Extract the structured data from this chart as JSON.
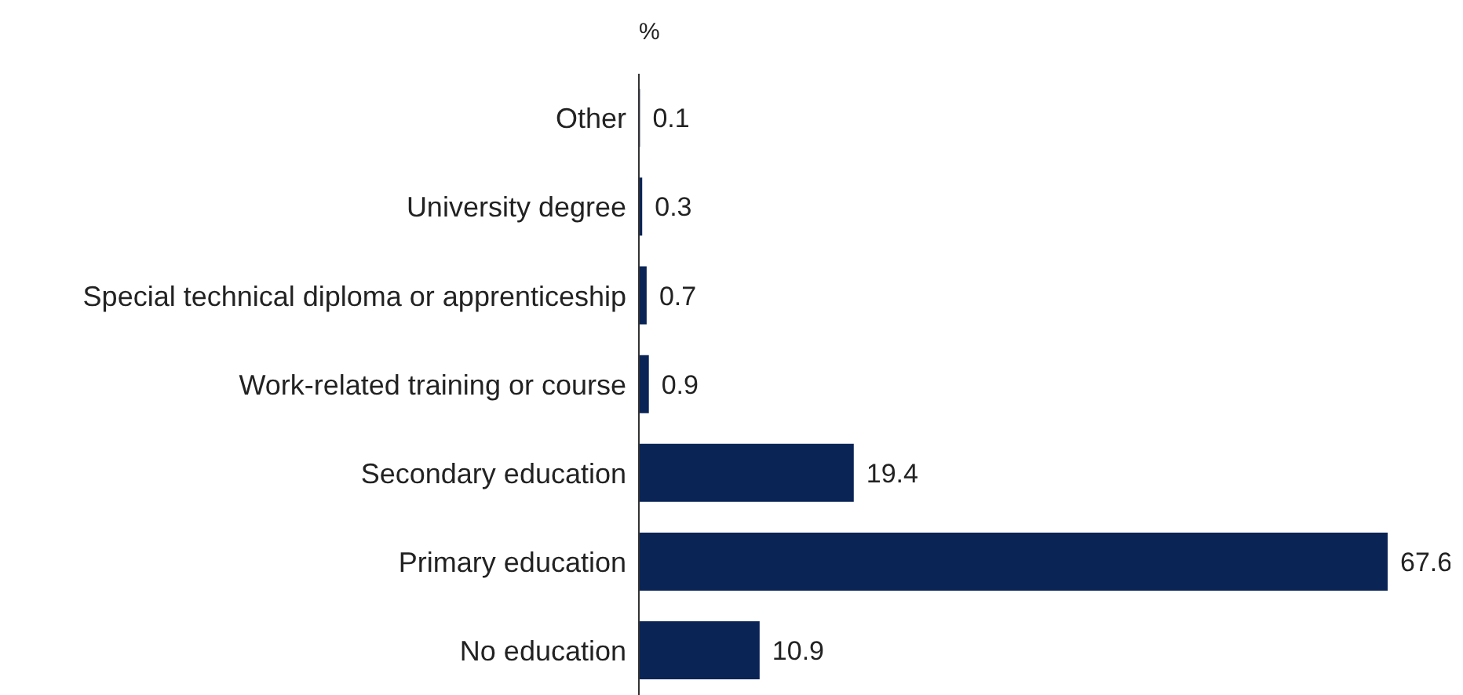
{
  "chart_data": {
    "type": "bar",
    "orientation": "horizontal",
    "xlabel": "%",
    "categories": [
      "Other",
      "University degree",
      "Special technical diploma or apprenticeship",
      "Work-related training or course",
      "Secondary education",
      "Primary education",
      "No education"
    ],
    "values": [
      0.1,
      0.3,
      0.7,
      0.9,
      19.4,
      67.6,
      10.9
    ],
    "color": "#0a2456",
    "data_labels": true,
    "grid": false,
    "legend": false
  }
}
